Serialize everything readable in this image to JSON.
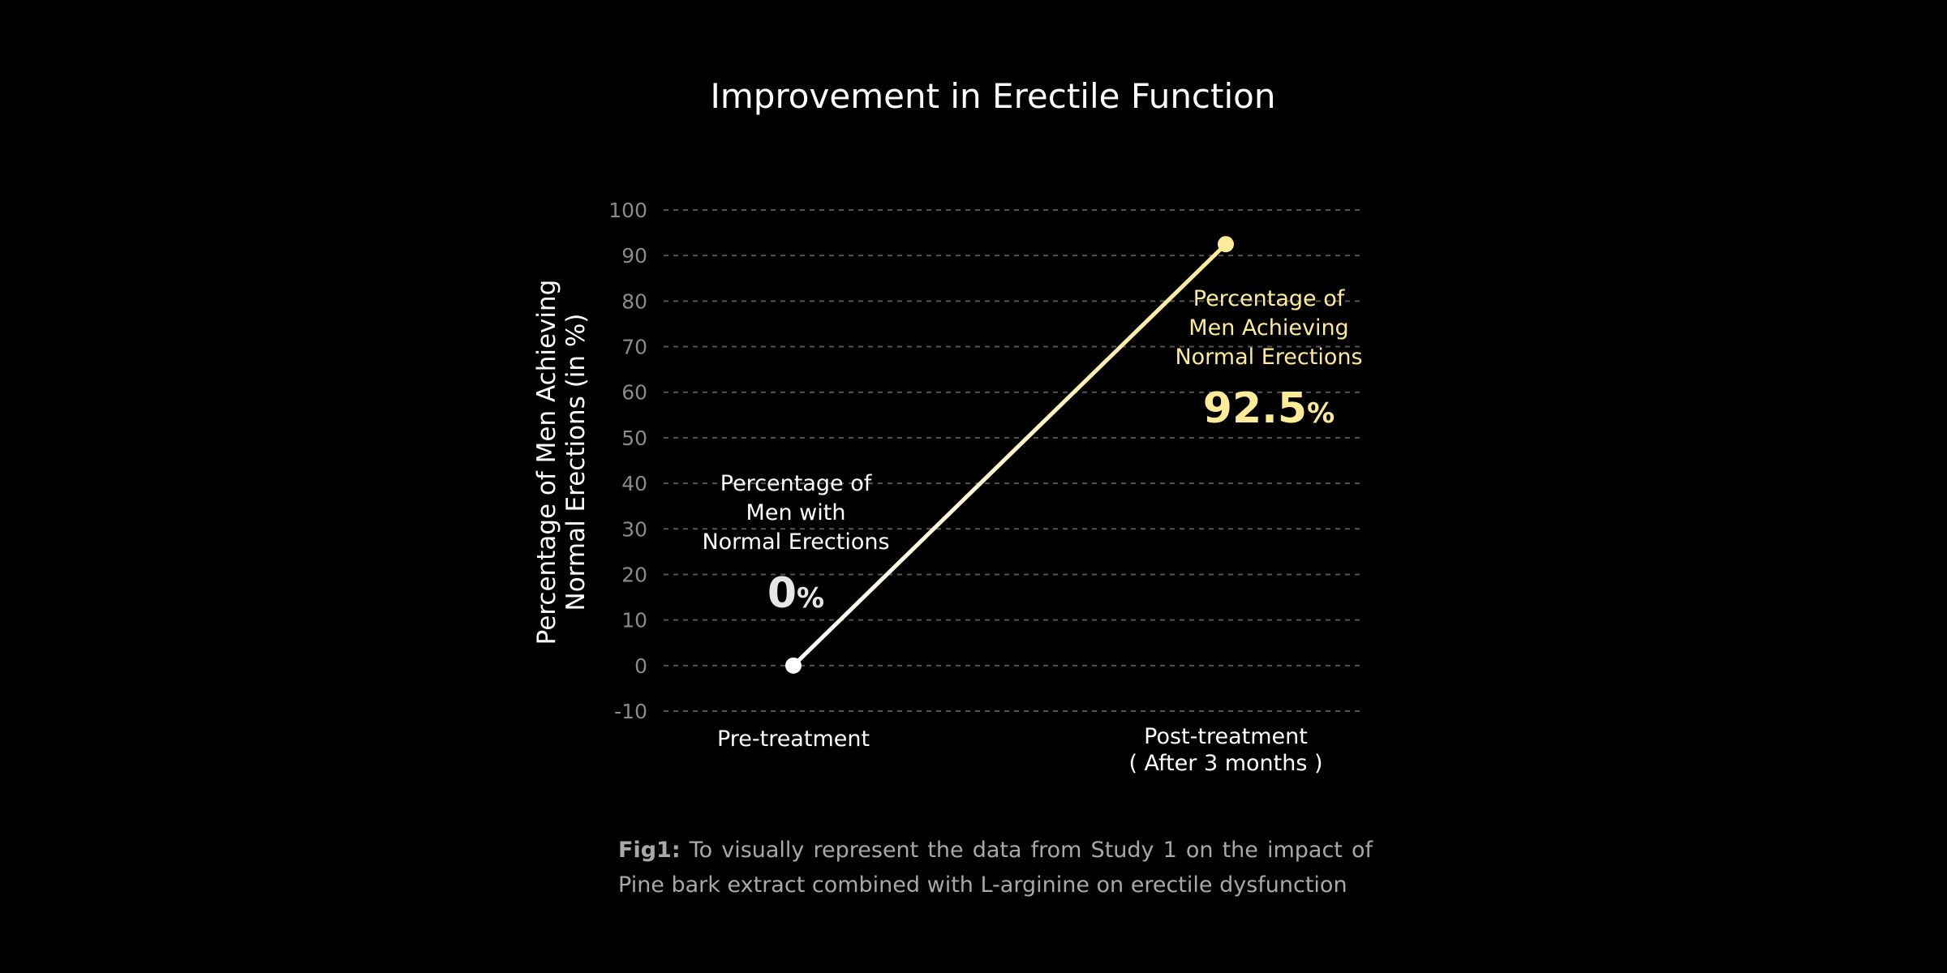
{
  "chart_data": {
    "type": "line",
    "title": "Improvement in Erectile Function",
    "ylabel_lines": [
      "Percentage of Men Achieving",
      "Normal Erections (in %)"
    ],
    "xlabel": "",
    "categories": [
      {
        "lines": [
          "Pre-treatment"
        ]
      },
      {
        "lines": [
          "Post-treatment",
          "( After 3 months )"
        ]
      }
    ],
    "values": [
      0,
      92.5
    ],
    "ylim": [
      -10,
      100
    ],
    "yticks": [
      "-10",
      "0",
      "10",
      "20",
      "30",
      "40",
      "50",
      "60",
      "70",
      "80",
      "90",
      "100"
    ],
    "grid": true,
    "gridline_style": "dashed",
    "line_color_start": "#ffffff",
    "line_color_end": "#fdeb98",
    "annotations": [
      {
        "lines": [
          "Percentage of",
          "Men with",
          "Normal Erections"
        ],
        "value": "0",
        "unit": "%",
        "color": "#ffffff",
        "value_color": "#e6e6e6"
      },
      {
        "lines": [
          "Percentage of",
          "Men Achieving",
          "Normal Erections"
        ],
        "value": "92.5",
        "unit": "%",
        "color": "#fdeb98",
        "value_color": "#fdeb98"
      }
    ]
  },
  "caption": {
    "label": "Fig1:",
    "text": "To visually represent the data from Study 1 on the impact of Pine bark extract combined with L-arginine on erectile dysfunction"
  }
}
